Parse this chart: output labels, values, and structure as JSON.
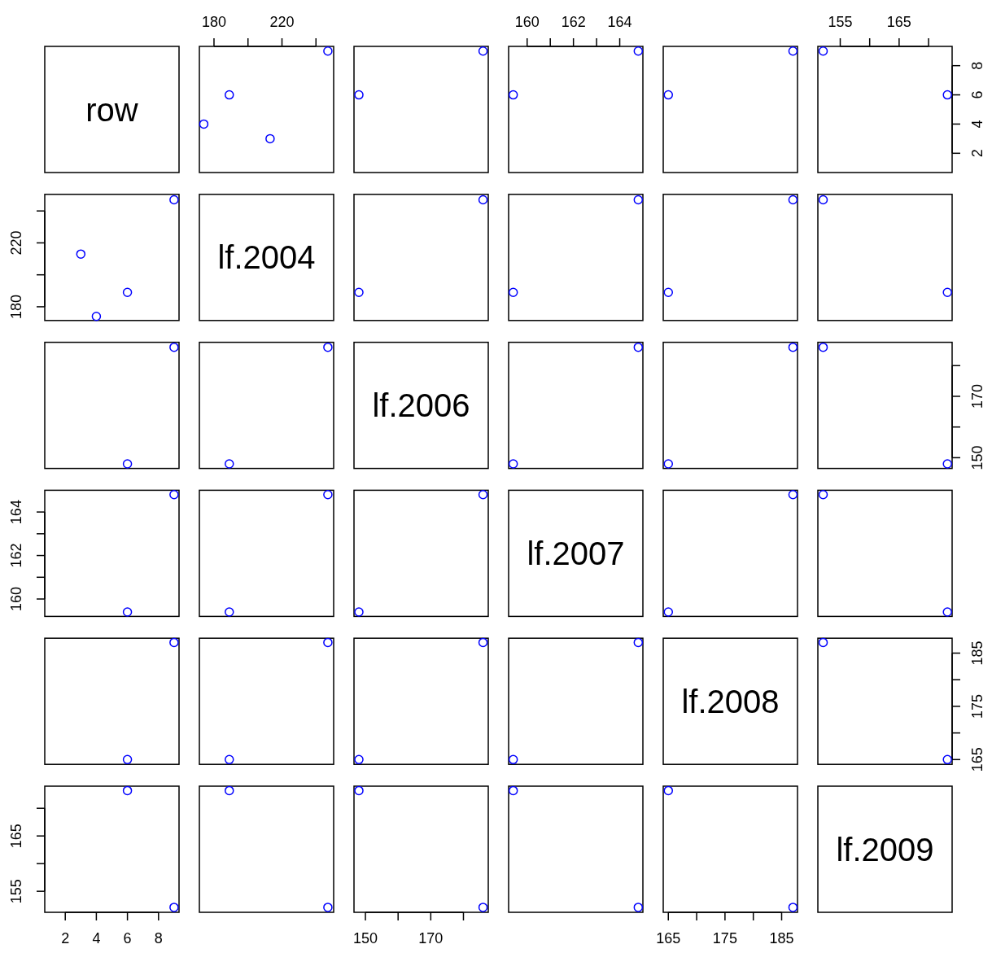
{
  "chart_data": [
    {
      "type": "other",
      "title": "row"
    },
    {
      "type": "scatter",
      "x": [
        213,
        174,
        189,
        247
      ],
      "values": [
        3,
        4,
        6,
        9
      ],
      "color": "#0000ff",
      "marker": "circle",
      "xlim": [
        171.4,
        250.4
      ],
      "ylim": [
        0.68,
        9.32
      ],
      "xticks": [
        180,
        {
          "value": 200,
          "label": null
        },
        220,
        {
          "value": 240,
          "label": null
        }
      ],
      "tick_labels": "x"
    },
    {
      "type": "scatter",
      "x": [
        148,
        186
      ],
      "values": [
        6,
        9
      ],
      "color": "#0000ff",
      "marker": "circle",
      "xlim": [
        146.5,
        187.6
      ],
      "ylim": [
        0.68,
        9.32
      ],
      "tick_labels": false
    },
    {
      "type": "scatter",
      "x": [
        159.4,
        164.8
      ],
      "values": [
        6,
        9
      ],
      "color": "#0000ff",
      "marker": "circle",
      "xlim": [
        159.2,
        165.0
      ],
      "ylim": [
        0.68,
        9.32
      ],
      "xticks": [
        160,
        {
          "value": 161,
          "label": null
        },
        162,
        {
          "value": 163,
          "label": null
        },
        164
      ],
      "tick_labels": "x"
    },
    {
      "type": "scatter",
      "x": [
        165,
        187
      ],
      "values": [
        6,
        9
      ],
      "color": "#0000ff",
      "marker": "circle",
      "xlim": [
        164.1,
        187.8
      ],
      "ylim": [
        0.68,
        9.32
      ],
      "tick_labels": false
    },
    {
      "type": "scatter",
      "x": [
        173.2,
        152.1
      ],
      "values": [
        6,
        9
      ],
      "color": "#0000ff",
      "marker": "circle",
      "xlim": [
        151.2,
        174.0
      ],
      "ylim": [
        0.68,
        9.32
      ],
      "xticks": [
        155,
        {
          "value": 160,
          "label": null
        },
        165,
        {
          "value": 170,
          "label": null
        }
      ],
      "yticks": [
        2,
        4,
        6,
        8
      ]
    },
    {
      "type": "scatter",
      "x": [
        3,
        4,
        6,
        9
      ],
      "values": [
        213,
        174,
        189,
        247
      ],
      "color": "#0000ff",
      "marker": "circle",
      "xlim": [
        0.68,
        9.32
      ],
      "ylim": [
        171.4,
        250.4
      ],
      "yticks": [
        180,
        {
          "value": 200,
          "label": null
        },
        220,
        {
          "value": 240,
          "label": null
        }
      ],
      "tick_labels": "y"
    },
    {
      "type": "other",
      "title": "lf.2004"
    },
    {
      "type": "scatter",
      "x": [
        148,
        186
      ],
      "values": [
        189,
        247
      ],
      "color": "#0000ff",
      "marker": "circle",
      "xlim": [
        146.5,
        187.6
      ],
      "ylim": [
        171.4,
        250.4
      ],
      "tick_labels": false
    },
    {
      "type": "scatter",
      "x": [
        159.4,
        164.8
      ],
      "values": [
        189,
        247
      ],
      "color": "#0000ff",
      "marker": "circle",
      "xlim": [
        159.2,
        165.0
      ],
      "ylim": [
        171.4,
        250.4
      ],
      "tick_labels": false
    },
    {
      "type": "scatter",
      "x": [
        165,
        187
      ],
      "values": [
        189,
        247
      ],
      "color": "#0000ff",
      "marker": "circle",
      "xlim": [
        164.1,
        187.8
      ],
      "ylim": [
        171.4,
        250.4
      ],
      "tick_labels": false
    },
    {
      "type": "scatter",
      "x": [
        173.2,
        152.1
      ],
      "values": [
        189,
        247
      ],
      "color": "#0000ff",
      "marker": "circle",
      "xlim": [
        151.2,
        174.0
      ],
      "ylim": [
        171.4,
        250.4
      ],
      "tick_labels": false
    },
    {
      "type": "scatter",
      "x": [
        6,
        9
      ],
      "values": [
        148,
        186
      ],
      "color": "#0000ff",
      "marker": "circle",
      "xlim": [
        0.68,
        9.32
      ],
      "ylim": [
        146.5,
        187.6
      ],
      "tick_labels": false
    },
    {
      "type": "scatter",
      "x": [
        189,
        247
      ],
      "values": [
        148,
        186
      ],
      "color": "#0000ff",
      "marker": "circle",
      "xlim": [
        171.4,
        250.4
      ],
      "ylim": [
        146.5,
        187.6
      ],
      "tick_labels": false
    },
    {
      "type": "other",
      "title": "lf.2006"
    },
    {
      "type": "scatter",
      "x": [
        159.4,
        164.8
      ],
      "values": [
        148,
        186
      ],
      "color": "#0000ff",
      "marker": "circle",
      "xlim": [
        159.2,
        165.0
      ],
      "ylim": [
        146.5,
        187.6
      ],
      "tick_labels": false
    },
    {
      "type": "scatter",
      "x": [
        165,
        187
      ],
      "values": [
        148,
        186
      ],
      "color": "#0000ff",
      "marker": "circle",
      "xlim": [
        164.1,
        187.8
      ],
      "ylim": [
        146.5,
        187.6
      ],
      "tick_labels": false
    },
    {
      "type": "scatter",
      "x": [
        173.2,
        152.1
      ],
      "values": [
        148,
        186
      ],
      "color": "#0000ff",
      "marker": "circle",
      "xlim": [
        151.2,
        174.0
      ],
      "ylim": [
        146.5,
        187.6
      ],
      "yticks": [
        150,
        {
          "value": 160,
          "label": null
        },
        170,
        {
          "value": 180,
          "label": null
        }
      ],
      "tick_labels": "y"
    },
    {
      "type": "scatter",
      "x": [
        6,
        9
      ],
      "values": [
        159.4,
        164.8
      ],
      "color": "#0000ff",
      "marker": "circle",
      "xlim": [
        0.68,
        9.32
      ],
      "ylim": [
        159.2,
        165.0
      ],
      "yticks": [
        160,
        {
          "value": 161,
          "label": null
        },
        162,
        {
          "value": 163,
          "label": null
        },
        164
      ],
      "tick_labels": "y"
    },
    {
      "type": "scatter",
      "x": [
        189,
        247
      ],
      "values": [
        159.4,
        164.8
      ],
      "color": "#0000ff",
      "marker": "circle",
      "xlim": [
        171.4,
        250.4
      ],
      "ylim": [
        159.2,
        165.0
      ],
      "tick_labels": false
    },
    {
      "type": "scatter",
      "x": [
        148,
        186
      ],
      "values": [
        159.4,
        164.8
      ],
      "color": "#0000ff",
      "marker": "circle",
      "xlim": [
        146.5,
        187.6
      ],
      "ylim": [
        159.2,
        165.0
      ],
      "tick_labels": false
    },
    {
      "type": "other",
      "title": "lf.2007"
    },
    {
      "type": "scatter",
      "x": [
        165,
        187
      ],
      "values": [
        159.4,
        164.8
      ],
      "color": "#0000ff",
      "marker": "circle",
      "xlim": [
        164.1,
        187.8
      ],
      "ylim": [
        159.2,
        165.0
      ],
      "tick_labels": false
    },
    {
      "type": "scatter",
      "x": [
        173.2,
        152.1
      ],
      "values": [
        159.4,
        164.8
      ],
      "color": "#0000ff",
      "marker": "circle",
      "xlim": [
        151.2,
        174.0
      ],
      "ylim": [
        159.2,
        165.0
      ],
      "tick_labels": false
    },
    {
      "type": "scatter",
      "x": [
        6,
        9
      ],
      "values": [
        165,
        187
      ],
      "color": "#0000ff",
      "marker": "circle",
      "xlim": [
        0.68,
        9.32
      ],
      "ylim": [
        164.1,
        187.8
      ],
      "tick_labels": false
    },
    {
      "type": "scatter",
      "x": [
        189,
        247
      ],
      "values": [
        165,
        187
      ],
      "color": "#0000ff",
      "marker": "circle",
      "xlim": [
        171.4,
        250.4
      ],
      "ylim": [
        164.1,
        187.8
      ],
      "tick_labels": false
    },
    {
      "type": "scatter",
      "x": [
        148,
        186
      ],
      "values": [
        165,
        187
      ],
      "color": "#0000ff",
      "marker": "circle",
      "xlim": [
        146.5,
        187.6
      ],
      "ylim": [
        164.1,
        187.8
      ],
      "tick_labels": false
    },
    {
      "type": "scatter",
      "x": [
        159.4,
        164.8
      ],
      "values": [
        165,
        187
      ],
      "color": "#0000ff",
      "marker": "circle",
      "xlim": [
        159.2,
        165.0
      ],
      "ylim": [
        164.1,
        187.8
      ],
      "tick_labels": false
    },
    {
      "type": "other",
      "title": "lf.2008"
    },
    {
      "type": "scatter",
      "x": [
        173.2,
        152.1
      ],
      "values": [
        165,
        187
      ],
      "color": "#0000ff",
      "marker": "circle",
      "xlim": [
        151.2,
        174.0
      ],
      "ylim": [
        164.1,
        187.8
      ],
      "yticks": [
        165,
        {
          "value": 170,
          "label": null
        },
        175,
        {
          "value": 180,
          "label": null
        },
        185
      ],
      "tick_labels": "y"
    },
    {
      "type": "scatter",
      "x": [
        6,
        9
      ],
      "values": [
        173.2,
        152.1
      ],
      "color": "#0000ff",
      "marker": "circle",
      "xlim": [
        0.68,
        9.32
      ],
      "ylim": [
        151.2,
        174.0
      ],
      "xticks": [
        2,
        4,
        6,
        8
      ],
      "yticks": [
        155,
        {
          "value": 160,
          "label": null
        },
        165,
        {
          "value": 170,
          "label": null
        }
      ]
    },
    {
      "type": "scatter",
      "x": [
        189,
        247
      ],
      "values": [
        173.2,
        152.1
      ],
      "color": "#0000ff",
      "marker": "circle",
      "xlim": [
        171.4,
        250.4
      ],
      "ylim": [
        151.2,
        174.0
      ],
      "tick_labels": false
    },
    {
      "type": "scatter",
      "x": [
        148,
        186
      ],
      "values": [
        173.2,
        152.1
      ],
      "color": "#0000ff",
      "marker": "circle",
      "xlim": [
        146.5,
        187.6
      ],
      "ylim": [
        151.2,
        174.0
      ],
      "xticks": [
        150,
        {
          "value": 160,
          "label": null
        },
        170,
        {
          "value": 180,
          "label": null
        }
      ],
      "tick_labels": "x"
    },
    {
      "type": "scatter",
      "x": [
        159.4,
        164.8
      ],
      "values": [
        173.2,
        152.1
      ],
      "color": "#0000ff",
      "marker": "circle",
      "xlim": [
        159.2,
        165.0
      ],
      "ylim": [
        151.2,
        174.0
      ],
      "tick_labels": false
    },
    {
      "type": "scatter",
      "x": [
        165,
        187
      ],
      "values": [
        173.2,
        152.1
      ],
      "color": "#0000ff",
      "marker": "circle",
      "xlim": [
        164.1,
        187.8
      ],
      "ylim": [
        151.2,
        174.0
      ],
      "xticks": [
        165,
        {
          "value": 170,
          "label": null
        },
        175,
        {
          "value": 180,
          "label": null
        },
        185
      ],
      "tick_labels": "x"
    },
    {
      "type": "other",
      "title": "lf.2009"
    }
  ]
}
